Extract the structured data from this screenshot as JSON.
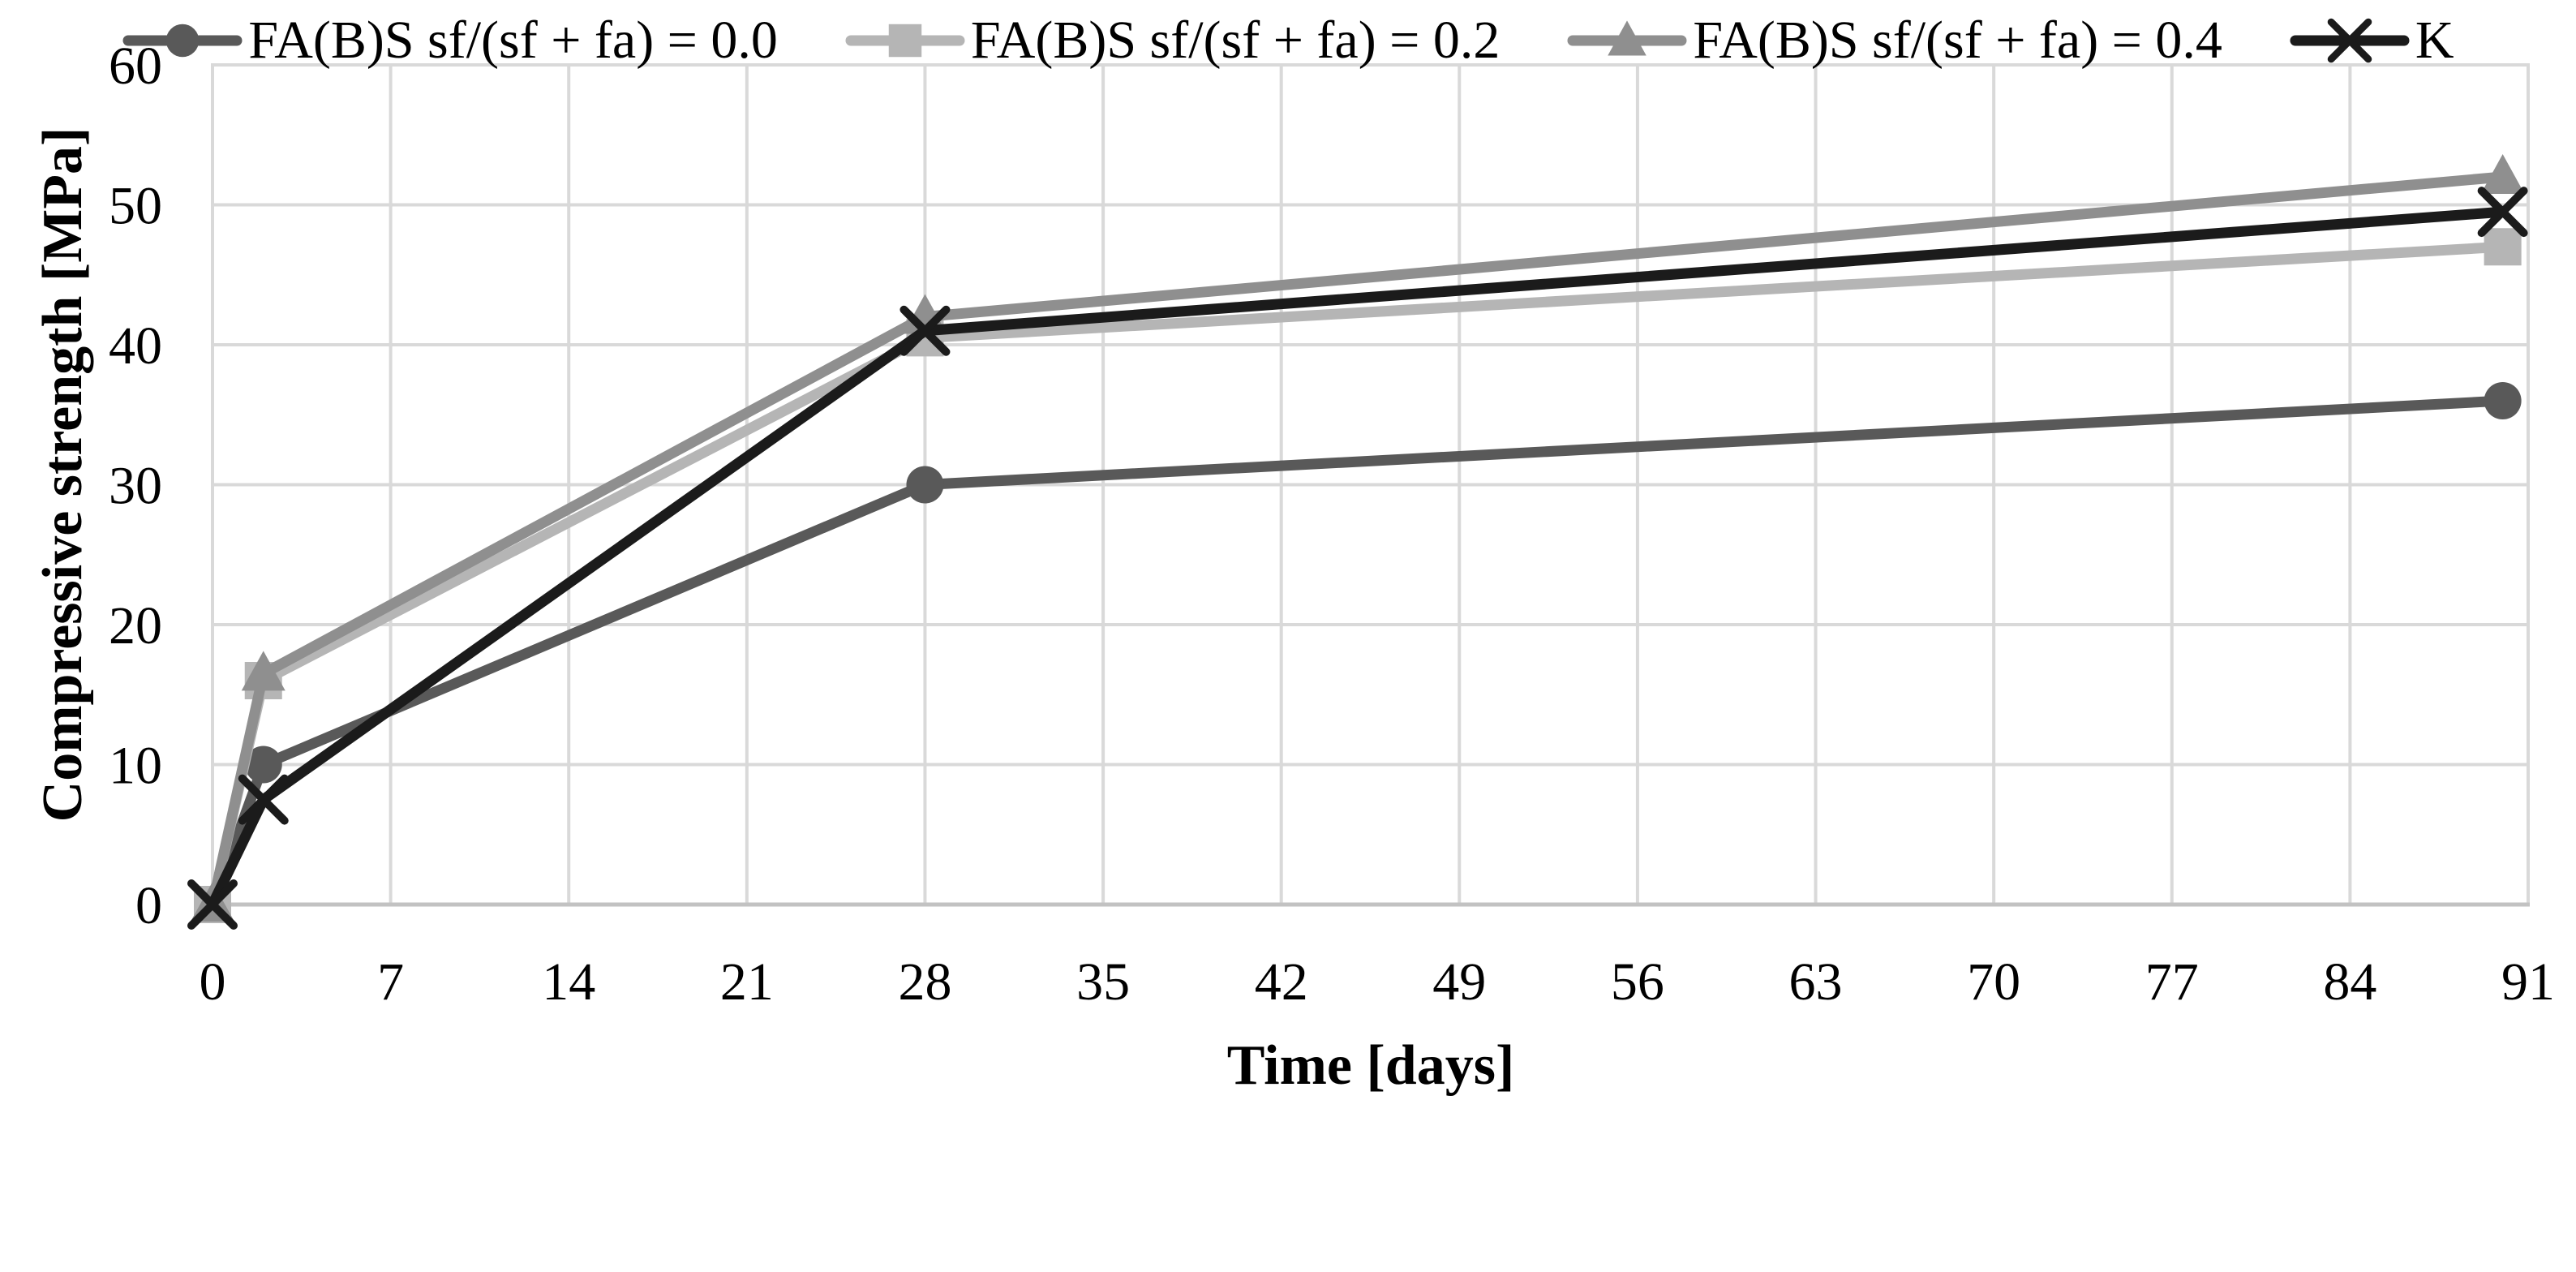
{
  "chart_data": {
    "type": "line",
    "title": "",
    "xlabel": "Time [days]",
    "ylabel": "Compressive strength [MPa]",
    "x": [
      0,
      2,
      28,
      90
    ],
    "series": [
      {
        "name": "FA(B)S sf/(sf + fa) = 0.0",
        "marker": "circle",
        "color": "#595959",
        "values": [
          0,
          10,
          30,
          36
        ]
      },
      {
        "name": "FA(B)S sf/(sf + fa) = 0.2",
        "marker": "square",
        "color": "#b5b5b5",
        "values": [
          0,
          16,
          40.5,
          47
        ]
      },
      {
        "name": "FA(B)S sf/(sf + fa) = 0.4",
        "marker": "triangle",
        "color": "#8f8f8f",
        "values": [
          0,
          16.5,
          42,
          52
        ]
      },
      {
        "name": "K",
        "marker": "x",
        "color": "#1b1b1b",
        "values": [
          0,
          7.5,
          41,
          49.5
        ]
      }
    ],
    "xticks": [
      0,
      7,
      14,
      21,
      28,
      35,
      42,
      49,
      56,
      63,
      70,
      77,
      84,
      91
    ],
    "yticks": [
      0,
      10,
      20,
      30,
      40,
      50,
      60
    ],
    "xlim": [
      0,
      91
    ],
    "ylim": [
      0,
      60
    ],
    "grid": true,
    "legend_position": "bottom",
    "colors": {
      "grid": "#d9d9d9",
      "frame": "#d9d9d9",
      "axis_line": "#c2c2c2",
      "text": "#000000",
      "background": "#ffffff"
    }
  }
}
